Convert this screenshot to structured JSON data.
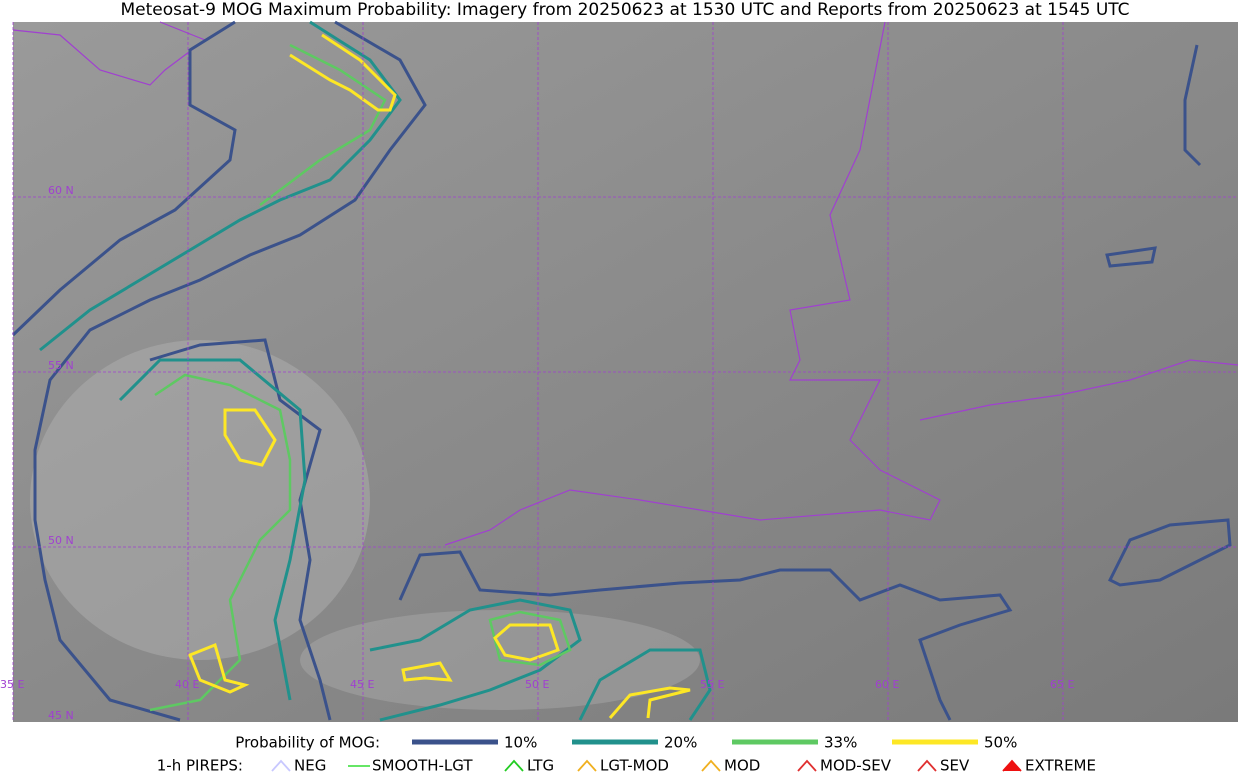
{
  "header": {
    "title": "Meteosat-9 MOG Maximum Probability: Imagery from 20250623 at 1530 UTC and Reports from 20250623 at 1545 UTC"
  },
  "map": {
    "lat_labels": [
      "60 N",
      "55 N",
      "50 N",
      "45 N"
    ],
    "lon_labels": [
      "35 E",
      "40 E",
      "45 E",
      "50 E",
      "55 E",
      "60 E",
      "65 E"
    ]
  },
  "legend": {
    "prob_title": "Probability of MOG:",
    "prob_items": [
      {
        "label": "10%",
        "color": "#3b528b"
      },
      {
        "label": "20%",
        "color": "#21918c"
      },
      {
        "label": "33%",
        "color": "#5ec962"
      },
      {
        "label": "50%",
        "color": "#fde725"
      }
    ],
    "pirep_title": "1-h PIREPS:",
    "pirep_items": [
      {
        "label": "NEG",
        "color": "#c8c8ff"
      },
      {
        "label": "SMOOTH-LGT",
        "color": "#33dd33"
      },
      {
        "label": "LTG",
        "color": "#22cc22"
      },
      {
        "label": "LGT-MOD",
        "color": "#f0b020"
      },
      {
        "label": "MOD",
        "color": "#f0b020"
      },
      {
        "label": "MOD-SEV",
        "color": "#e03030"
      },
      {
        "label": "SEV",
        "color": "#e03030"
      },
      {
        "label": "EXTREME",
        "color": "#ee1111"
      }
    ]
  }
}
